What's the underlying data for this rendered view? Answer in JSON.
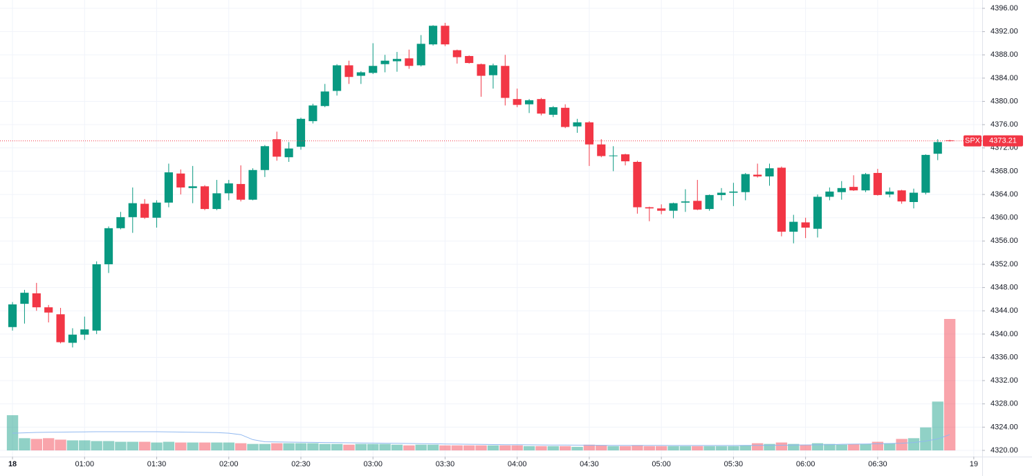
{
  "chart_data": {
    "type": "candlestick",
    "open": [
      4341.2,
      4345.2,
      4347,
      4344.6,
      4343.4,
      4338.5,
      4339.9,
      4340.6,
      4352,
      4358.2,
      4360.1,
      4362.4,
      4360,
      4362.6,
      4367.6,
      4365.1,
      4365.4,
      4361.5,
      4364.2,
      4365.8,
      4363.1,
      4368.2,
      4373.5,
      4370.4,
      4372.2,
      4376.6,
      4379.2,
      4381.8,
      4386.2,
      4384.4,
      4384.9,
      4386.4,
      4386.9,
      4387.4,
      4386.2,
      4389.8,
      4393,
      4388.8,
      4387.8,
      4386.4,
      4384.5,
      4386.1,
      4380.4,
      4379.5,
      4380.4,
      4377.7,
      4378.9,
      4375.7,
      4376.4,
      4372.6,
      4370.6,
      4370.9,
      4369.6,
      4361.8,
      4361.6,
      4361.2,
      4362.6,
      4362.9,
      4361.5,
      4363.9,
      4364.3,
      4364.4,
      4367.4,
      4367.1,
      4368.6,
      4357.6,
      4359.2,
      4358.1,
      4363.6,
      4364.4,
      4365.3,
      4364.7,
      4367.7,
      4364,
      4364.7,
      4362.7,
      4364.3,
      4371,
      4373.3
    ],
    "high": [
      4345.5,
      4347.6,
      4348.8,
      4345,
      4344.5,
      4341,
      4343,
      4352.5,
      4358.5,
      4361,
      4365.2,
      4363.2,
      4363,
      4369.3,
      4368.3,
      4368.9,
      4365.6,
      4366.5,
      4366.5,
      4369,
      4368.5,
      4372.5,
      4374.8,
      4373,
      4377.2,
      4379.6,
      4383,
      4386.4,
      4387,
      4385.2,
      4390,
      4388,
      4388.5,
      4388.9,
      4391.4,
      4393.1,
      4393.5,
      4388.9,
      4387.9,
      4386.5,
      4386.5,
      4388,
      4382.2,
      4380.4,
      4380.6,
      4379.2,
      4379.5,
      4377,
      4376.6,
      4373.5,
      4372.3,
      4371,
      4369.8,
      4361.9,
      4362.3,
      4362.6,
      4364.9,
      4366.5,
      4364,
      4365.1,
      4366,
      4367.7,
      4369.3,
      4369.3,
      4368.8,
      4360.5,
      4360,
      4364,
      4365.2,
      4366.3,
      4367.3,
      4367.7,
      4368.4,
      4365.2,
      4364.8,
      4365,
      4370.9,
      4373.5,
      4373.4
    ],
    "low": [
      4340.6,
      4341.8,
      4344,
      4342,
      4338.4,
      4337.7,
      4339,
      4340,
      4350.5,
      4358,
      4357.4,
      4359.8,
      4358.3,
      4361.8,
      4364,
      4362.5,
      4361.3,
      4361.3,
      4363,
      4362.8,
      4363,
      4367,
      4369.8,
      4369.6,
      4371.7,
      4376.2,
      4379,
      4381,
      4383,
      4383,
      4384.7,
      4385,
      4385.1,
      4385.6,
      4386,
      4389.6,
      4389.5,
      4386.5,
      4386.5,
      4380.8,
      4382.2,
      4379.3,
      4379,
      4378,
      4377.6,
      4377.3,
      4375.4,
      4374.6,
      4368.9,
      4370.4,
      4368,
      4369,
      4360.7,
      4359.4,
      4360.6,
      4359.9,
      4361,
      4361.3,
      4361.2,
      4363,
      4362,
      4363,
      4366.9,
      4365.5,
      4356.8,
      4355.6,
      4356.5,
      4356.6,
      4363,
      4363.1,
      4364.6,
      4364.4,
      4363.8,
      4363.5,
      4362.4,
      4361.6,
      4364,
      4369.9,
      4373.1
    ],
    "close": [
      4345.1,
      4347.1,
      4344.6,
      4343.7,
      4338.6,
      4339.9,
      4340.8,
      4352,
      4358.2,
      4360.1,
      4362.5,
      4360,
      4362.6,
      4367.8,
      4365.2,
      4365.4,
      4361.5,
      4364.2,
      4365.9,
      4363.1,
      4368.2,
      4372.3,
      4370.5,
      4371.9,
      4377,
      4379.3,
      4381.7,
      4386.2,
      4384.2,
      4385,
      4386.1,
      4387,
      4387.3,
      4386.1,
      4389.9,
      4393,
      4389.8,
      4387.6,
      4386.6,
      4384.4,
      4386.2,
      4380.6,
      4379.4,
      4380.2,
      4377.9,
      4379,
      4375.6,
      4376.4,
      4372.6,
      4370.6,
      4370.7,
      4369.7,
      4361.8,
      4361.6,
      4361.2,
      4362.5,
      4362.8,
      4361.4,
      4363.9,
      4364.3,
      4364.5,
      4367.5,
      4367.1,
      4368.5,
      4357.6,
      4359.3,
      4358.3,
      4363.6,
      4364.5,
      4365.1,
      4364.7,
      4367.5,
      4363.9,
      4364.5,
      4362.8,
      4364.3,
      4370.8,
      4373,
      4373.21
    ],
    "volume": [
      49,
      17,
      16,
      17,
      15,
      14,
      14,
      13,
      13,
      12,
      12,
      12,
      11,
      12,
      11,
      11,
      11,
      11,
      11,
      10,
      9,
      9,
      10,
      10,
      10,
      10,
      9,
      9,
      8,
      9,
      9,
      9,
      8,
      7,
      8,
      8,
      7,
      7,
      7,
      7,
      7,
      7,
      7,
      6,
      6,
      6,
      6,
      5,
      8,
      7,
      6,
      6,
      7,
      6,
      6,
      6,
      6,
      6,
      6,
      6,
      6,
      7,
      10,
      9,
      11,
      9,
      8,
      10,
      9,
      8,
      9,
      9,
      12,
      10,
      16,
      17,
      32,
      68,
      183
    ],
    "volume_ma": [
      24,
      24.5,
      25,
      25.2,
      25.4,
      25.6,
      25.8,
      26,
      26,
      26,
      26,
      26,
      26,
      25.8,
      25.5,
      25.2,
      25,
      24.8,
      24,
      22,
      15,
      12,
      11.8,
      11.6,
      11.4,
      11.2,
      11,
      10.8,
      10.6,
      10.4,
      10.2,
      10,
      9.8,
      9.6,
      9.4,
      9.2,
      9,
      8.8,
      8.6,
      8.4,
      8.2,
      8,
      8,
      7.8,
      7.6,
      7.5,
      7.4,
      7.3,
      7.2,
      7.1,
      7,
      7,
      7,
      6.9,
      6.9,
      6.8,
      6.8,
      6.8,
      6.8,
      6.8,
      6.8,
      6.9,
      7,
      7.1,
      7.2,
      7.4,
      7.6,
      7.8,
      8,
      8.6,
      8.8,
      9,
      9.2,
      9.6,
      10,
      11,
      13,
      16,
      22
    ],
    "up_color": "#089981",
    "down_color": "#f23645",
    "ma_color": "#90b8f0",
    "xlim": [
      -1.04,
      80.7
    ],
    "xticks": [
      {
        "value": 0,
        "label": "18"
      },
      {
        "value": 6,
        "label": "01:00"
      },
      {
        "value": 12,
        "label": "01:30"
      },
      {
        "value": 18,
        "label": "02:00"
      },
      {
        "value": 24,
        "label": "02:30"
      },
      {
        "value": 30,
        "label": "03:00"
      },
      {
        "value": 36,
        "label": "03:30"
      },
      {
        "value": 42,
        "label": "04:00"
      },
      {
        "value": 48,
        "label": "04:30"
      },
      {
        "value": 54,
        "label": "05:00"
      },
      {
        "value": 60,
        "label": "05:30"
      },
      {
        "value": 66,
        "label": "06:00"
      },
      {
        "value": 72,
        "label": "06:30"
      },
      {
        "value": 80,
        "label": "19"
      }
    ],
    "ylim": [
      4318.93,
      4397.43
    ],
    "yticks": [
      {
        "value": 4320,
        "label": "4320.00"
      },
      {
        "value": 4324,
        "label": "4324.00"
      },
      {
        "value": 4328,
        "label": "4328.00"
      },
      {
        "value": 4332,
        "label": "4332.00"
      },
      {
        "value": 4336,
        "label": "4336.00"
      },
      {
        "value": 4340,
        "label": "4340.00"
      },
      {
        "value": 4344,
        "label": "4344.00"
      },
      {
        "value": 4348,
        "label": "4348.00"
      },
      {
        "value": 4352,
        "label": "4352.00"
      },
      {
        "value": 4356,
        "label": "4356.00"
      },
      {
        "value": 4360,
        "label": "4360.00"
      },
      {
        "value": 4364,
        "label": "4364.00"
      },
      {
        "value": 4368,
        "label": "4368.00"
      },
      {
        "value": 4372,
        "label": "4372.00"
      },
      {
        "value": 4376,
        "label": "4376.00"
      },
      {
        "value": 4380,
        "label": "4380.00"
      },
      {
        "value": 4384,
        "label": "4384.00"
      },
      {
        "value": 4388,
        "label": "4388.00"
      },
      {
        "value": 4392,
        "label": "4392.00"
      },
      {
        "value": 4396,
        "label": "4396.00"
      }
    ],
    "grid": true,
    "last_price": {
      "symbol": "SPX",
      "value": 4373.21
    }
  }
}
